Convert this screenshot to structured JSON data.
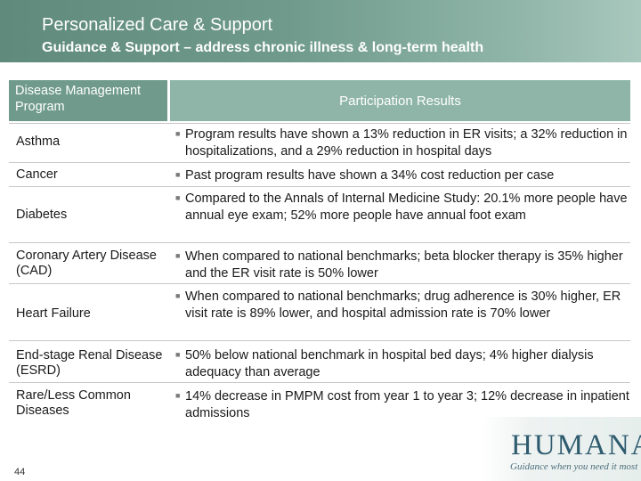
{
  "header": {
    "title": "Personalized Care & Support",
    "subtitle": "Guidance & Support – address chronic illness & long-term health"
  },
  "table": {
    "columns": [
      "Disease Management Program",
      "Participation Results"
    ],
    "rows": [
      {
        "name": "Asthma",
        "result": "Program results have shown a 13% reduction in ER visits; a 32% reduction in hospitalizations, and a 29% reduction in hospital days"
      },
      {
        "name": "Cancer",
        "result": "Past program results have shown a 34% cost reduction per case"
      },
      {
        "name": "Diabetes",
        "result": "Compared to the Annals of Internal Medicine Study: 20.1% more people have annual eye exam; 52% more people have annual foot exam"
      },
      {
        "name": "Coronary Artery Disease (CAD)",
        "result": "When compared to national benchmarks; beta blocker therapy is 35% higher and the ER visit rate is 50% lower"
      },
      {
        "name": "Heart Failure",
        "result": "When compared to national benchmarks; drug adherence is 30% higher, ER visit rate is 89% lower, and hospital admission rate is 70% lower"
      },
      {
        "name": "End-stage Renal Disease (ESRD)",
        "result": "50% below national benchmark in hospital bed days; 4% higher dialysis adequacy than average"
      },
      {
        "name": "Rare/Less Common Diseases",
        "result": "14% decrease in PMPM cost from year 1 to year 3; 12% decrease in inpatient admissions"
      }
    ]
  },
  "footer": {
    "page_number": "44",
    "logo_text": "HUMANA",
    "logo_tagline": "Guidance when you need it most"
  },
  "colors": {
    "header_green": "#6f9a8c",
    "column_header_light": "#8fb5a8",
    "logo_blue": "#2e5b6e"
  }
}
